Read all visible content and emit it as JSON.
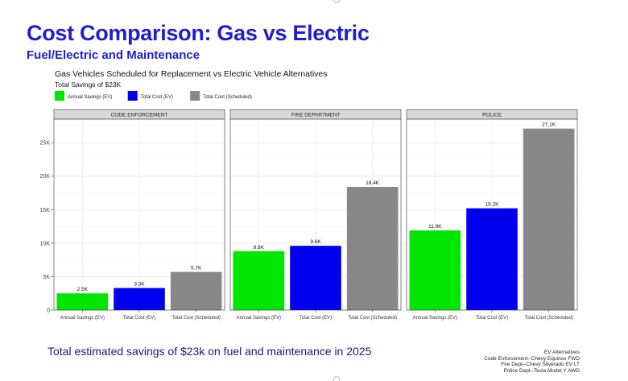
{
  "slide": {
    "title": "Cost Comparison: Gas vs Electric",
    "subtitle": "Fuel/Electric and Maintenance",
    "footer": "Total estimated savings of $23k on fuel and maintenance in 2025",
    "notes": [
      "EV Alternatives",
      "Code Enforcement--Chevy Equinox FWD",
      "Fire Dept--Chevy Silverado EV LT",
      "Police Dept--Tesla Model Y AWD"
    ]
  },
  "chart_data": {
    "type": "bar",
    "title": "Gas Vehicles Scheduled for Replacement vs Electric Vehicle Alternatives",
    "subtitle": "Total Savings of $23K",
    "legend_position": "top-left",
    "grid": true,
    "ylim": [
      0,
      28500
    ],
    "y_ticks": [
      0,
      5000,
      10000,
      15000,
      20000,
      25000
    ],
    "y_tick_labels": [
      "0",
      "5K",
      "10K",
      "15K",
      "20K",
      "25K"
    ],
    "categories": [
      "Annual Savings (EV)",
      "Total Cost (EV)",
      "Total Cost (Scheduled)"
    ],
    "colors": [
      "#00e600",
      "#0000ee",
      "#888888"
    ],
    "panels": [
      {
        "name": "CODE ENFORCEMENT",
        "values": [
          2500,
          3300,
          5700
        ],
        "labels": [
          "2.5K",
          "3.3K",
          "5.7K"
        ]
      },
      {
        "name": "FIRE DEPARTMENT",
        "values": [
          8800,
          9600,
          18400
        ],
        "labels": [
          "8.8K",
          "9.6K",
          "18.4K"
        ]
      },
      {
        "name": "POLICE",
        "values": [
          11900,
          15200,
          27100
        ],
        "labels": [
          "11.9K",
          "15.2K",
          "27.1K"
        ]
      }
    ]
  }
}
